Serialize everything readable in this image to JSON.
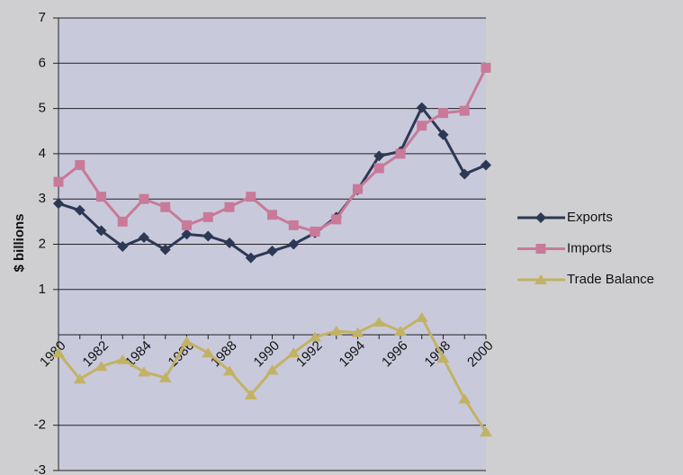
{
  "chart_data": {
    "type": "line",
    "y_label": "$ billions",
    "categories": [
      "1980",
      null,
      "1982",
      null,
      "1984",
      null,
      "1986",
      null,
      "1988",
      null,
      "1990",
      null,
      "1992",
      null,
      "1994",
      null,
      "1996",
      null,
      "1998",
      null,
      "2000"
    ],
    "series": [
      {
        "name": "Exports",
        "color": "#2d3854",
        "marker": "diamond",
        "values": [
          2.9,
          2.75,
          2.3,
          1.95,
          2.15,
          1.88,
          2.22,
          2.18,
          2.03,
          1.7,
          1.85,
          2.0,
          2.25,
          2.6,
          3.2,
          3.95,
          4.05,
          5.02,
          4.42,
          3.55,
          3.75
        ]
      },
      {
        "name": "Imports",
        "color": "#c87a98",
        "marker": "square",
        "values": [
          3.38,
          3.75,
          3.05,
          2.5,
          3.0,
          2.82,
          2.42,
          2.6,
          2.82,
          3.05,
          2.65,
          2.42,
          2.28,
          2.55,
          3.22,
          3.68,
          4.0,
          4.62,
          4.9,
          4.95,
          5.9
        ]
      },
      {
        "name": "Trade Balance",
        "color": "#c2b264",
        "marker": "triangle",
        "values": [
          -0.4,
          -0.98,
          -0.7,
          -0.55,
          -0.82,
          -0.95,
          -0.15,
          -0.4,
          -0.8,
          -1.33,
          -0.78,
          -0.4,
          -0.05,
          0.08,
          0.05,
          0.28,
          0.08,
          0.38,
          -0.52,
          -1.42,
          -2.15
        ]
      }
    ],
    "ylim": [
      -3,
      7
    ],
    "yticks": [
      -3,
      -2,
      1,
      2,
      3,
      4,
      5,
      6,
      7
    ],
    "grid": true,
    "legend": "right"
  }
}
